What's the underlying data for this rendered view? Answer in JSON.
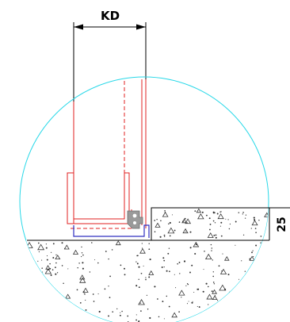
{
  "dimensions": {
    "width_label": "KD",
    "height_label": "25"
  },
  "colors": {
    "profile_outline": "#e02020",
    "hidden_line": "#e02020",
    "detail_circle": "#28d8e8",
    "base_plate": "#3030c0",
    "concrete_edge": "#000000",
    "concrete_texture": "#333333",
    "seal": "#9a9a9a"
  },
  "icons": {
    "seal": "rubber-seal-profile",
    "arrow": "dimension-arrowhead"
  }
}
